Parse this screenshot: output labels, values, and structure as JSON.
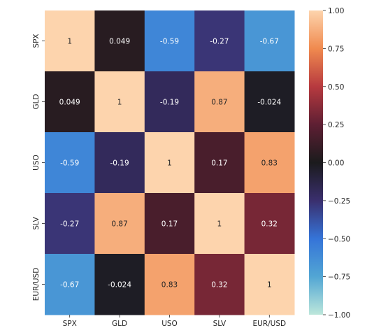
{
  "chart_data": {
    "type": "heatmap",
    "title": "",
    "xlabel": "",
    "ylabel": "",
    "x_categories": [
      "SPX",
      "GLD",
      "USO",
      "SLV",
      "EUR/USD"
    ],
    "y_categories": [
      "SPX",
      "GLD",
      "USO",
      "SLV",
      "EUR/USD"
    ],
    "values": [
      [
        1,
        0.049,
        -0.59,
        -0.27,
        -0.67
      ],
      [
        0.049,
        1,
        -0.19,
        0.87,
        -0.024
      ],
      [
        -0.59,
        -0.19,
        1,
        0.17,
        0.83
      ],
      [
        -0.27,
        0.87,
        0.17,
        1,
        0.32
      ],
      [
        -0.67,
        -0.024,
        0.83,
        0.32,
        1
      ]
    ],
    "annotations": [
      [
        "1",
        "0.049",
        "-0.59",
        "-0.27",
        "-0.67"
      ],
      [
        "0.049",
        "1",
        "-0.19",
        "0.87",
        "-0.024"
      ],
      [
        "-0.59",
        "-0.19",
        "1",
        "0.17",
        "0.83"
      ],
      [
        "-0.27",
        "0.87",
        "0.17",
        "1",
        "0.32"
      ],
      [
        "-0.67",
        "-0.024",
        "0.83",
        "0.32",
        "1"
      ]
    ],
    "colorbar": {
      "min": -1.0,
      "max": 1.0,
      "ticks": [
        "1.00",
        "0.75",
        "0.50",
        "0.25",
        "0.00",
        "−0.25",
        "−0.50",
        "−0.75",
        "−1.00"
      ],
      "tick_values": [
        1.0,
        0.75,
        0.5,
        0.25,
        0.0,
        -0.25,
        -0.5,
        -0.75,
        -1.0
      ],
      "colormap": "icefire",
      "stops": [
        {
          "v": -1.0,
          "color": "#bde7db"
        },
        {
          "v": -0.75,
          "color": "#52a6d4"
        },
        {
          "v": -0.5,
          "color": "#3574d8"
        },
        {
          "v": -0.25,
          "color": "#3a2f6e"
        },
        {
          "v": 0.0,
          "color": "#1b1b1d"
        },
        {
          "v": 0.25,
          "color": "#5e1f33"
        },
        {
          "v": 0.5,
          "color": "#b73a3f"
        },
        {
          "v": 0.75,
          "color": "#f08a4f"
        },
        {
          "v": 1.0,
          "color": "#fdd4ad"
        }
      ]
    },
    "grid": false,
    "legend": "colorbar-right"
  }
}
